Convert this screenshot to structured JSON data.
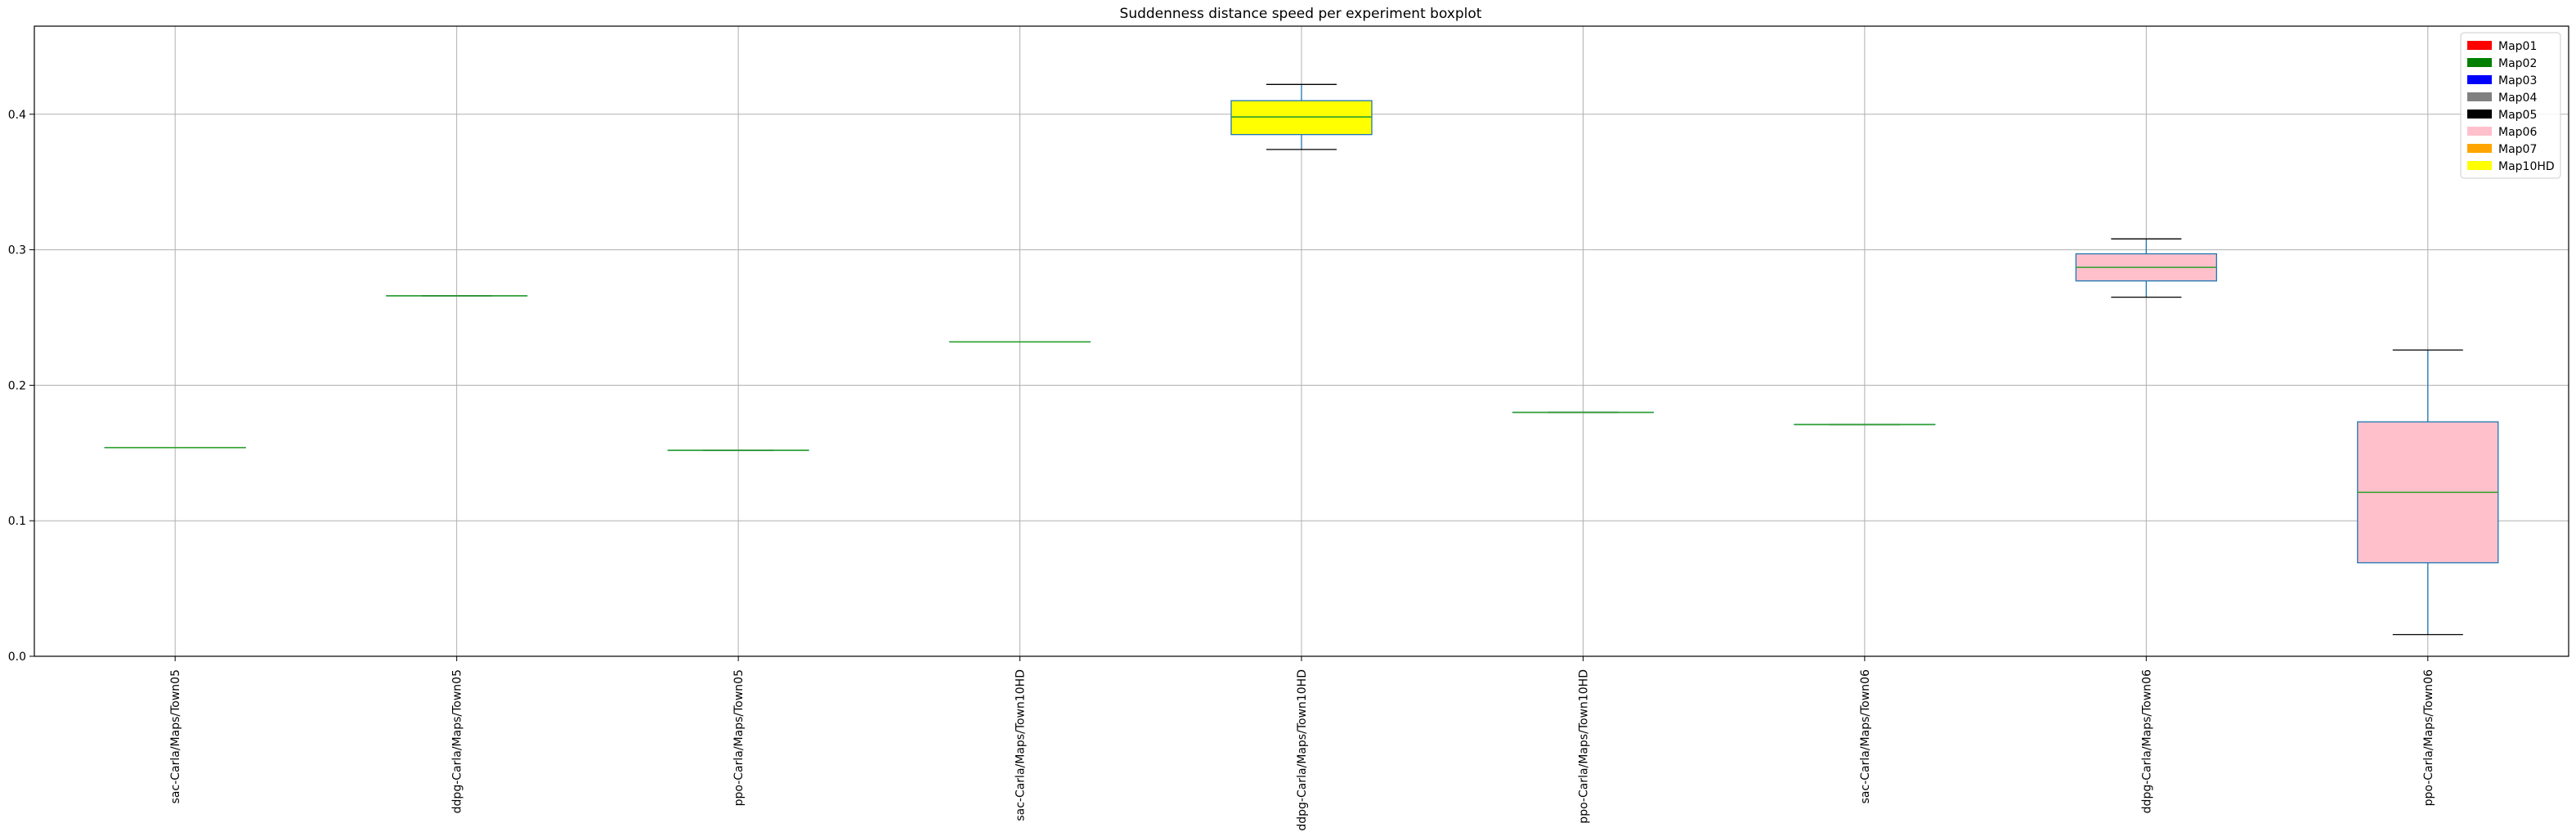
{
  "chart_data": {
    "type": "boxplot",
    "title": "Suddenness distance speed per experiment boxplot",
    "xlabel": "",
    "ylabel": "",
    "ylim": [
      0.0,
      0.465
    ],
    "yticks": [
      0.0,
      0.1,
      0.2,
      0.3,
      0.4
    ],
    "ytick_labels": [
      "0.0",
      "0.1",
      "0.2",
      "0.3",
      "0.4"
    ],
    "grid": true,
    "legend_position": "top-right",
    "legend": [
      {
        "label": "Map01",
        "color": "#ff0000"
      },
      {
        "label": "Map02",
        "color": "#008000"
      },
      {
        "label": "Map03",
        "color": "#0000ff"
      },
      {
        "label": "Map04",
        "color": "#808080"
      },
      {
        "label": "Map05",
        "color": "#000000"
      },
      {
        "label": "Map06",
        "color": "#ffc0cb"
      },
      {
        "label": "Map07",
        "color": "#ffa500"
      },
      {
        "label": "Map10HD",
        "color": "#ffff00"
      }
    ],
    "categories": [
      "sac-Carla/Maps/Town05",
      "ddpg-Carla/Maps/Town05",
      "ppo-Carla/Maps/Town05",
      "sac-Carla/Maps/Town10HD",
      "ddpg-Carla/Maps/Town10HD",
      "ppo-Carla/Maps/Town10HD",
      "sac-Carla/Maps/Town06",
      "ddpg-Carla/Maps/Town06",
      "ppo-Carla/Maps/Town06"
    ],
    "boxes": [
      {
        "whislo": 0.154,
        "q1": 0.154,
        "median": 0.154,
        "q3": 0.154,
        "whishi": 0.154,
        "color": "#000000"
      },
      {
        "whislo": 0.266,
        "q1": 0.266,
        "median": 0.266,
        "q3": 0.266,
        "whishi": 0.266,
        "color": "#000000"
      },
      {
        "whislo": 0.152,
        "q1": 0.152,
        "median": 0.152,
        "q3": 0.152,
        "whishi": 0.152,
        "color": "#000000"
      },
      {
        "whislo": 0.232,
        "q1": 0.232,
        "median": 0.232,
        "q3": 0.232,
        "whishi": 0.232,
        "color": "#ffff00"
      },
      {
        "whislo": 0.374,
        "q1": 0.385,
        "median": 0.398,
        "q3": 0.41,
        "whishi": 0.422,
        "color": "#ffff00"
      },
      {
        "whislo": 0.18,
        "q1": 0.18,
        "median": 0.18,
        "q3": 0.18,
        "whishi": 0.18,
        "color": "#ffff00"
      },
      {
        "whislo": 0.171,
        "q1": 0.171,
        "median": 0.171,
        "q3": 0.171,
        "whishi": 0.171,
        "color": "#ffc0cb"
      },
      {
        "whislo": 0.265,
        "q1": 0.277,
        "median": 0.287,
        "q3": 0.297,
        "whishi": 0.308,
        "color": "#ffc0cb"
      },
      {
        "whislo": 0.016,
        "q1": 0.069,
        "median": 0.121,
        "q3": 0.173,
        "whishi": 0.226,
        "color": "#ffc0cb"
      }
    ],
    "style": {
      "box_edge_color": "#1f77b4",
      "median_color": "#2ca02c",
      "cap_color": "#000000",
      "grid_color": "#b0b0b0"
    }
  }
}
